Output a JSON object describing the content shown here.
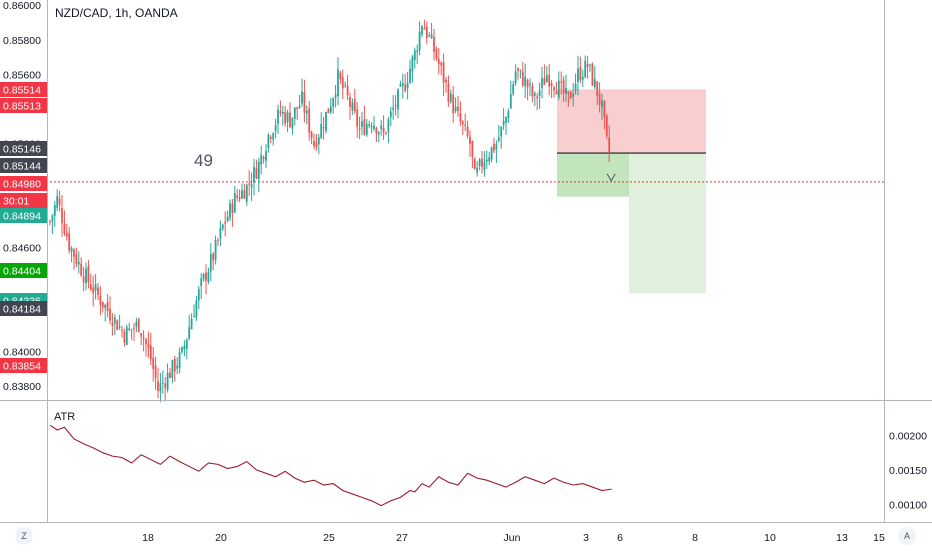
{
  "header": {
    "symbol_label": "NZD/CAD, 1h, OANDA",
    "bar_count_label": "49"
  },
  "colors": {
    "up": "#26a69a",
    "down": "#ef5350",
    "stop_zone": "#f7c5c7",
    "target_zone": "#dcefd8",
    "atr_line": "#9b1c2c",
    "current_price_line": "#e53935"
  },
  "price_axis": {
    "ticks": [
      "0.86000",
      "0.85800",
      "0.85600",
      "0.85200",
      "0.84600",
      "0.84000",
      "0.83800"
    ],
    "tags": [
      {
        "text": "0.85514",
        "bg": "#f23645"
      },
      {
        "text": "0.85513",
        "bg": "#f23645"
      },
      {
        "text": "0.85146",
        "bg": "#434651"
      },
      {
        "text": "0.85144",
        "bg": "#434651"
      },
      {
        "text": "0.84980",
        "bg": "#f23645"
      },
      {
        "text": "30:01",
        "bg": "#f23645"
      },
      {
        "text": "0.84894",
        "bg": "#22ab94"
      },
      {
        "text": "0.84404",
        "bg": "#08a508"
      },
      {
        "text": "0.84336",
        "bg": "#22ab94"
      },
      {
        "text": "0.84184",
        "bg": "#434651"
      },
      {
        "text": "0.83854",
        "bg": "#f23645"
      }
    ]
  },
  "indicator": {
    "name": "ATR",
    "ticks": [
      "0.00200",
      "0.00150",
      "0.00100"
    ]
  },
  "time_axis": {
    "labels": [
      "18",
      "20",
      "25",
      "27",
      "Jun",
      "3",
      "6",
      "8",
      "10",
      "13",
      "15"
    ]
  },
  "corner_buttons": {
    "left": "Z",
    "right": "A"
  },
  "chart_data": [
    {
      "type": "candlestick",
      "title": "NZD/CAD, 1h, OANDA",
      "ylim": [
        0.8372,
        0.8603
      ],
      "x_labels": [
        "18",
        "20",
        "25",
        "27",
        "Jun",
        "3",
        "6",
        "8",
        "10",
        "13",
        "15"
      ],
      "close_path": [
        [
          0,
          0.8475
        ],
        [
          3,
          0.8488
        ],
        [
          8,
          0.8462
        ],
        [
          14,
          0.8445
        ],
        [
          20,
          0.8432
        ],
        [
          26,
          0.842
        ],
        [
          31,
          0.841
        ],
        [
          37,
          0.8416
        ],
        [
          42,
          0.8396
        ],
        [
          45,
          0.8378
        ],
        [
          50,
          0.8388
        ],
        [
          55,
          0.8398
        ],
        [
          59,
          0.842
        ],
        [
          63,
          0.8438
        ],
        [
          68,
          0.8455
        ],
        [
          72,
          0.8472
        ],
        [
          77,
          0.8488
        ],
        [
          82,
          0.8495
        ],
        [
          87,
          0.8508
        ],
        [
          91,
          0.8525
        ],
        [
          96,
          0.8538
        ],
        [
          100,
          0.8534
        ],
        [
          105,
          0.8545
        ],
        [
          110,
          0.852
        ],
        [
          116,
          0.854
        ],
        [
          120,
          0.8558
        ],
        [
          124,
          0.8546
        ],
        [
          129,
          0.8528
        ],
        [
          134,
          0.8534
        ],
        [
          139,
          0.8525
        ],
        [
          143,
          0.854
        ],
        [
          148,
          0.8555
        ],
        [
          152,
          0.8572
        ],
        [
          155,
          0.859
        ],
        [
          159,
          0.8578
        ],
        [
          163,
          0.8562
        ],
        [
          167,
          0.8545
        ],
        [
          170,
          0.8535
        ],
        [
          175,
          0.852
        ],
        [
          177,
          0.85
        ],
        [
          181,
          0.8512
        ],
        [
          186,
          0.852
        ],
        [
          190,
          0.8535
        ],
        [
          194,
          0.8562
        ],
        [
          198,
          0.8556
        ],
        [
          202,
          0.8545
        ],
        [
          207,
          0.856
        ],
        [
          211,
          0.8554
        ],
        [
          216,
          0.8545
        ],
        [
          220,
          0.856
        ],
        [
          224,
          0.8565
        ],
        [
          228,
          0.855
        ],
        [
          230,
          0.854
        ],
        [
          232,
          0.852
        ],
        [
          233,
          0.8515
        ]
      ],
      "annotations": {
        "bar_count": "49",
        "entry": 0.85146,
        "stop": 0.85514,
        "target_1": 0.84894,
        "target_2": 0.84336,
        "last_price": 0.8498
      }
    },
    {
      "type": "line",
      "series": [
        {
          "name": "ATR",
          "x": [
            0,
            3,
            6,
            10,
            14,
            18,
            22,
            26,
            30,
            34,
            38,
            42,
            46,
            50,
            54,
            58,
            62,
            66,
            70,
            74,
            78,
            82,
            86,
            90,
            94,
            98,
            102,
            106,
            110,
            114,
            118,
            122,
            126,
            130,
            134,
            138,
            142,
            146,
            150,
            152,
            155,
            158,
            162,
            166,
            170,
            174,
            178,
            182,
            186,
            190,
            194,
            198,
            202,
            206,
            210,
            214,
            218,
            222,
            226,
            230,
            234
          ],
          "y": [
            0.00215,
            0.00208,
            0.00212,
            0.00195,
            0.00188,
            0.00182,
            0.00175,
            0.0017,
            0.00168,
            0.0016,
            0.00172,
            0.00165,
            0.00158,
            0.0017,
            0.00162,
            0.00155,
            0.00148,
            0.0016,
            0.00158,
            0.00152,
            0.00155,
            0.00162,
            0.0015,
            0.00145,
            0.0014,
            0.00148,
            0.00138,
            0.00132,
            0.00135,
            0.00128,
            0.0013,
            0.0012,
            0.00115,
            0.0011,
            0.00105,
            0.00098,
            0.00105,
            0.0011,
            0.0012,
            0.00118,
            0.0013,
            0.00125,
            0.0014,
            0.00132,
            0.00128,
            0.00145,
            0.00138,
            0.00135,
            0.0013,
            0.00125,
            0.00132,
            0.0014,
            0.00135,
            0.0013,
            0.00138,
            0.00132,
            0.00128,
            0.0013,
            0.00125,
            0.0012,
            0.00122
          ]
        }
      ],
      "ylim": [
        0.0008,
        0.0024
      ]
    }
  ]
}
